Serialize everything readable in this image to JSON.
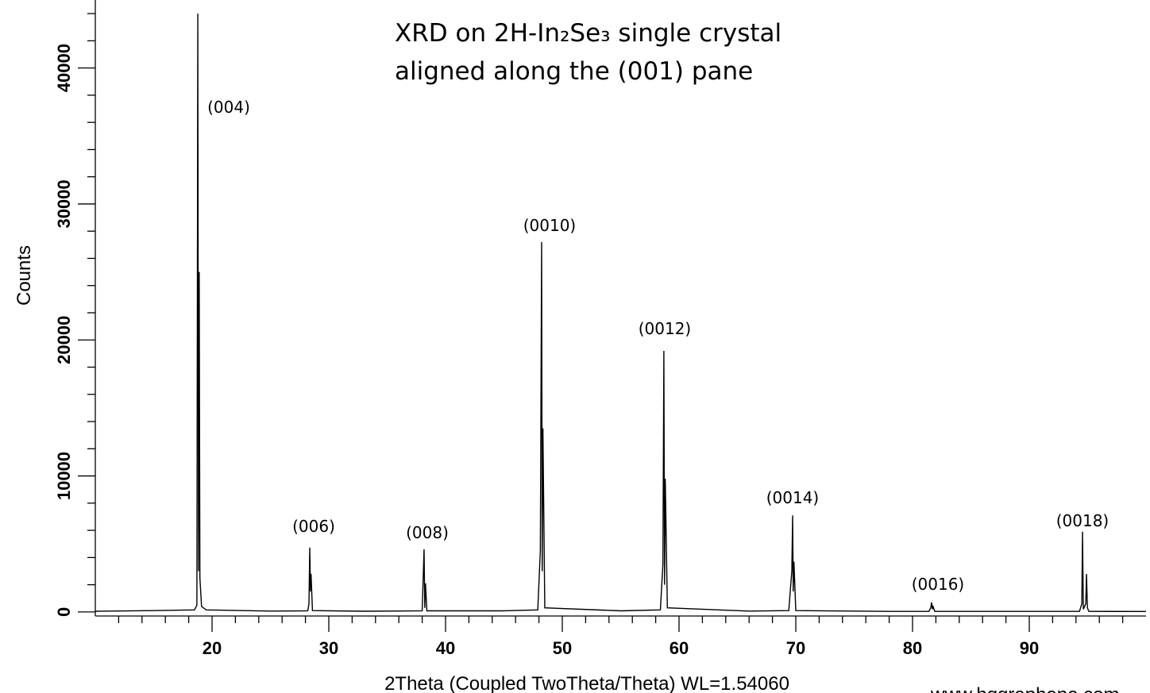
{
  "chart_data": {
    "type": "line",
    "title_lines": [
      "XRD on 2H-In₂Se₃ single crystal",
      "aligned along the (001) pane"
    ],
    "x_label": "2Theta (Coupled TwoTheta/Theta) WL=1.54060",
    "y_label": "Counts",
    "watermark": "www.hqgraphene.com",
    "color": "#000000",
    "xlim": [
      10,
      100
    ],
    "ylim": [
      -300,
      45000
    ],
    "xticks": [
      20,
      30,
      40,
      50,
      60,
      70,
      80,
      90
    ],
    "yticks": [
      0,
      10000,
      20000,
      30000,
      40000
    ],
    "x_minor_ticks": [
      12,
      14,
      16,
      18,
      22,
      24,
      26,
      28,
      32,
      34,
      36,
      38,
      42,
      44,
      46,
      48,
      52,
      54,
      56,
      58,
      62,
      64,
      66,
      68,
      72,
      74,
      76,
      78,
      82,
      84,
      86,
      88,
      92,
      94,
      96,
      98
    ],
    "y_minor_ticks": [
      2000,
      4000,
      6000,
      8000,
      12000,
      14000,
      16000,
      18000,
      22000,
      24000,
      26000,
      28000,
      32000,
      34000,
      36000,
      38000,
      42000,
      44000
    ],
    "x": [
      10,
      15,
      18.5,
      18.7,
      18.78,
      18.84,
      18.9,
      18.96,
      19.1,
      19.5,
      25,
      28.2,
      28.3,
      28.37,
      28.43,
      28.48,
      28.6,
      33,
      38.0,
      38.16,
      38.22,
      38.28,
      38.4,
      45,
      47.9,
      48.12,
      48.23,
      48.28,
      48.34,
      48.5,
      55,
      58.4,
      58.62,
      58.7,
      58.76,
      58.82,
      59.0,
      66,
      69.4,
      69.66,
      69.73,
      69.78,
      69.84,
      70.0,
      78,
      81.4,
      81.56,
      81.63,
      81.7,
      81.76,
      81.9,
      90,
      94.3,
      94.5,
      94.56,
      94.63,
      94.84,
      94.9,
      94.98,
      95.1,
      100
    ],
    "values": [
      50,
      100,
      150,
      500,
      44000,
      3000,
      25000,
      2500,
      400,
      150,
      60,
      80,
      600,
      4730,
      1500,
      2800,
      100,
      50,
      80,
      4600,
      300,
      2100,
      80,
      80,
      150,
      4500,
      27200,
      3000,
      13500,
      300,
      80,
      150,
      3500,
      19200,
      2000,
      9800,
      300,
      60,
      100,
      3000,
      7100,
      1500,
      3700,
      100,
      40,
      40,
      300,
      700,
      200,
      400,
      40,
      40,
      40,
      600,
      5900,
      200,
      600,
      2800,
      300,
      40,
      30
    ],
    "annotations": [
      "(004)",
      "(006)",
      "(008)",
      "(0010)",
      "(0012)",
      "(0014)",
      "(0016)",
      "(0018)"
    ]
  }
}
